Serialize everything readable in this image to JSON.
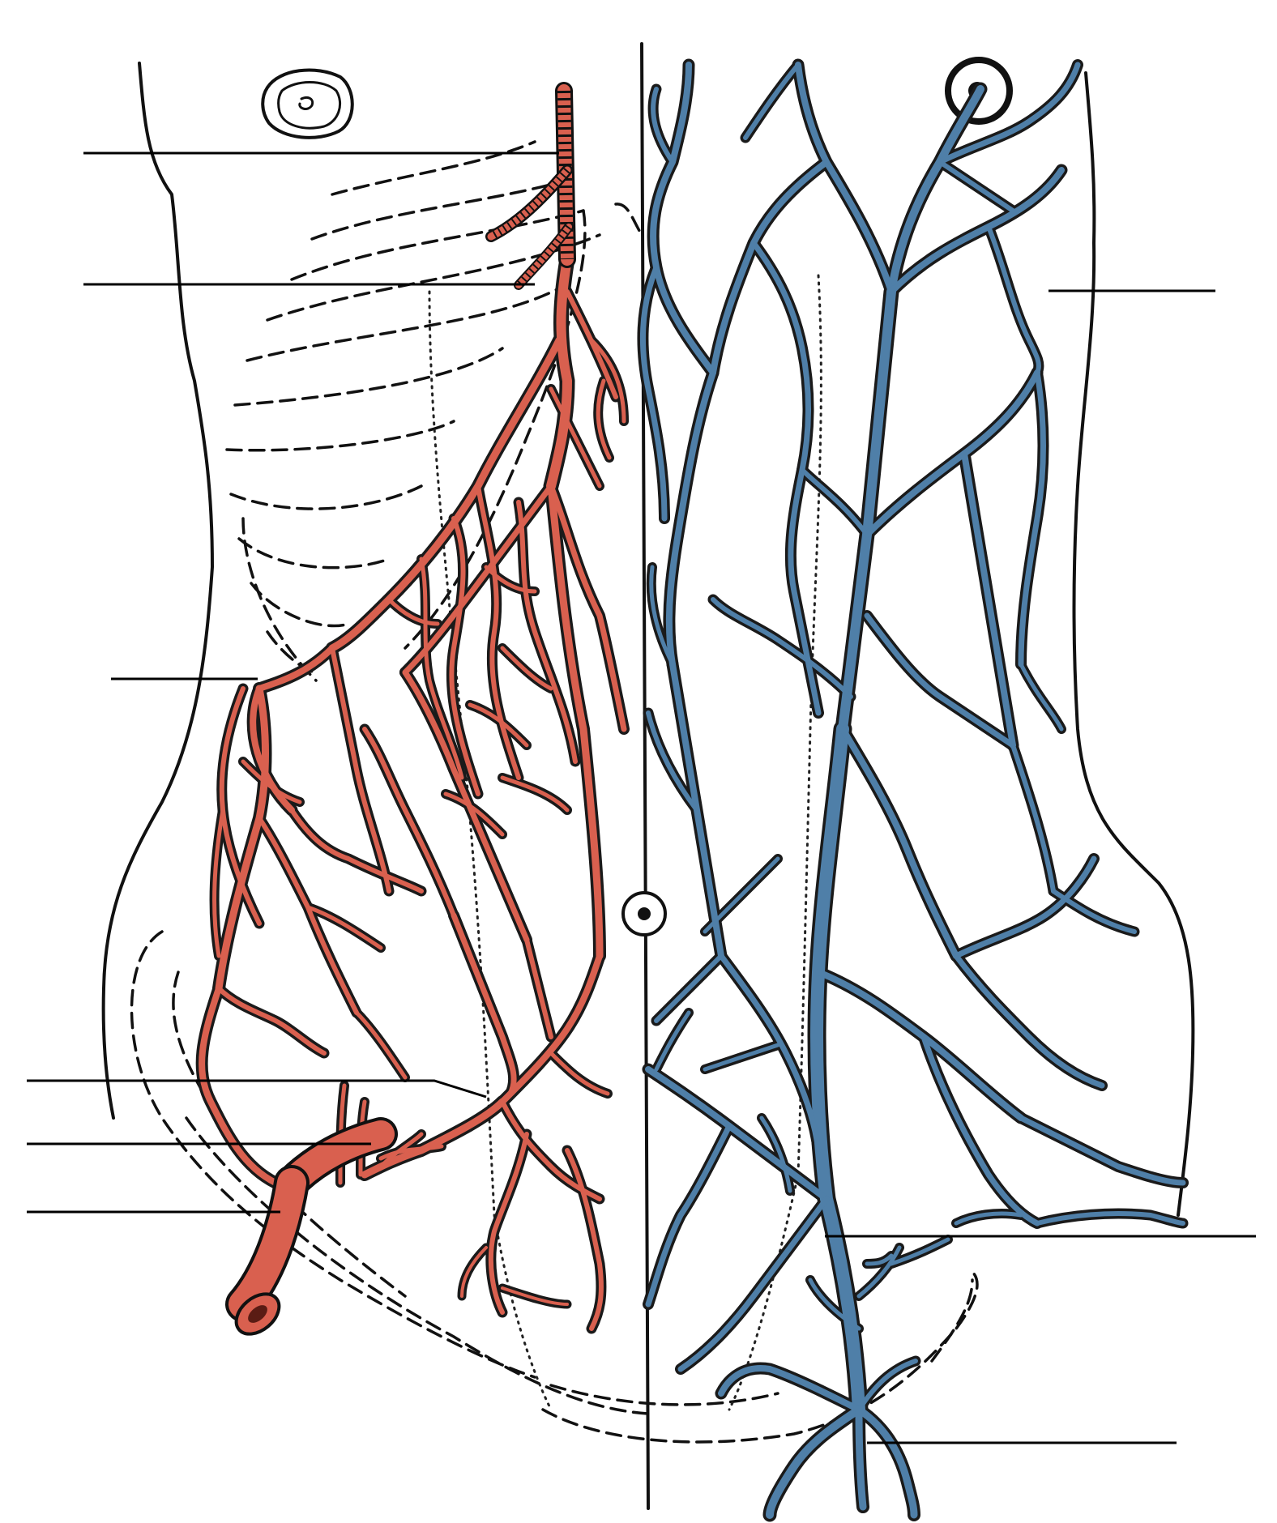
{
  "colors": {
    "artery": "#d9604f",
    "artery_dark": "#b23a2c",
    "vein": "#4f7fa8",
    "vein_light": "#6f9cc3",
    "outline": "#111111",
    "background": "#ffffff"
  },
  "labels": {
    "left": [
      "",
      "",
      "",
      "",
      "",
      ""
    ],
    "right": [
      "",
      "",
      ""
    ]
  }
}
